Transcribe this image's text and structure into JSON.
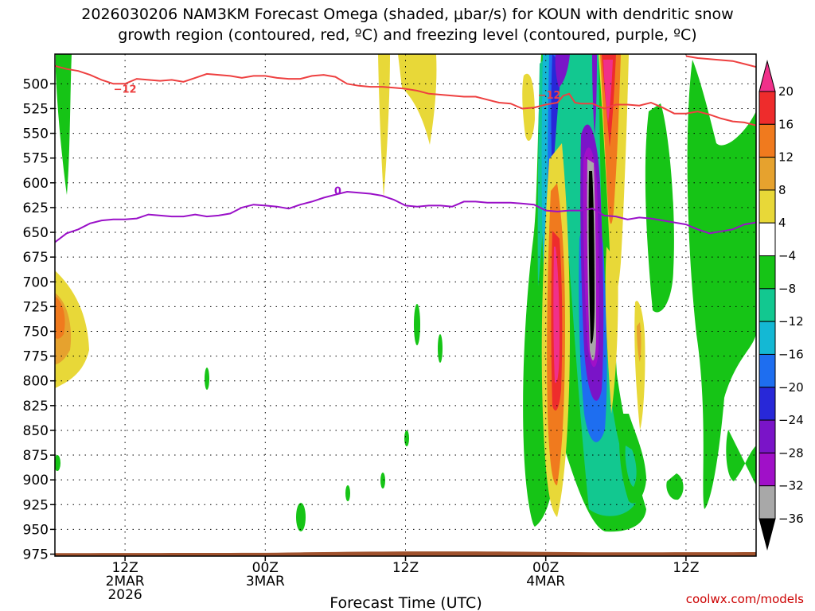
{
  "chart_data": {
    "type": "heatmap",
    "title_line1": "2026030206 NAM3KM Forecast Omega (shaded, μbar/s) for KOUN with dendritic snow",
    "title_line2": "growth region (contoured, red, ºC) and freezing level (contoured, purple, ºC)",
    "xlabel": "Forecast Time (UTC)",
    "credit": "coolwx.com/models",
    "y_axis": {
      "scale": "pressure",
      "ylim": [
        977,
        470
      ],
      "ticks": [
        500,
        525,
        550,
        575,
        600,
        625,
        650,
        675,
        700,
        725,
        750,
        775,
        800,
        825,
        850,
        875,
        900,
        925,
        950,
        975
      ]
    },
    "x_axis": {
      "ticks": [
        {
          "hour": 12,
          "label": "12Z",
          "sub1": "2MAR",
          "sub2": "2026"
        },
        {
          "hour": 24,
          "label": "00Z",
          "sub1": "3MAR",
          "sub2": ""
        },
        {
          "hour": 36,
          "label": "12Z",
          "sub1": "",
          "sub2": ""
        },
        {
          "hour": 48,
          "label": "00Z",
          "sub1": "4MAR",
          "sub2": ""
        },
        {
          "hour": 60,
          "label": "12Z",
          "sub1": "",
          "sub2": ""
        }
      ],
      "xlim": [
        6,
        66
      ]
    },
    "colorbar": {
      "labels": [
        "20",
        "16",
        "12",
        "8",
        "4",
        "−4",
        "−8",
        "−12",
        "−16",
        "−20",
        "−24",
        "−28",
        "−32",
        "−36"
      ],
      "colors": [
        "#f0308a",
        "#ee2c2c",
        "#f07a1e",
        "#e6a22e",
        "#e8d838",
        "#ffffff",
        "#16c416",
        "#12c890",
        "#14b8d4",
        "#1e6ef0",
        "#2828d8",
        "#7a14c8",
        "#a010c8",
        "#a8a8a8",
        "#000000"
      ]
    },
    "contour_minus12": {
      "label": "−12",
      "color": "#ee4040",
      "points": [
        [
          6,
          482
        ],
        [
          7,
          485
        ],
        [
          8,
          487
        ],
        [
          9,
          491
        ],
        [
          10,
          496
        ],
        [
          11,
          500
        ],
        [
          12,
          500
        ],
        [
          13,
          495
        ],
        [
          14,
          496
        ],
        [
          15,
          497
        ],
        [
          16,
          496
        ],
        [
          17,
          498
        ],
        [
          18,
          494
        ],
        [
          19,
          490
        ],
        [
          20,
          491
        ],
        [
          21,
          492
        ],
        [
          22,
          494
        ],
        [
          23,
          492
        ],
        [
          24,
          492
        ],
        [
          25,
          494
        ],
        [
          26,
          495
        ],
        [
          27,
          495
        ],
        [
          28,
          492
        ],
        [
          29,
          491
        ],
        [
          30,
          493
        ],
        [
          31,
          500
        ],
        [
          32,
          502
        ],
        [
          33,
          503
        ],
        [
          34,
          503
        ],
        [
          35,
          504
        ],
        [
          36,
          505
        ],
        [
          37,
          507
        ],
        [
          38,
          510
        ],
        [
          39,
          511
        ],
        [
          40,
          512
        ],
        [
          41,
          513
        ],
        [
          42,
          513
        ],
        [
          43,
          516
        ],
        [
          44,
          519
        ],
        [
          45,
          520
        ],
        [
          46,
          525
        ],
        [
          47,
          524
        ],
        [
          48,
          521
        ],
        [
          49,
          519
        ],
        [
          49.5,
          512
        ],
        [
          50,
          510
        ],
        [
          50.5,
          519
        ],
        [
          51,
          520
        ],
        [
          52,
          520
        ],
        [
          53,
          525
        ],
        [
          54,
          521
        ],
        [
          55,
          521
        ],
        [
          56,
          522
        ],
        [
          57,
          519
        ],
        [
          58,
          524
        ],
        [
          59,
          530
        ],
        [
          60,
          530
        ],
        [
          61,
          528
        ],
        [
          62,
          531
        ],
        [
          63,
          535
        ],
        [
          64,
          538
        ],
        [
          65,
          539
        ],
        [
          66,
          542
        ]
      ]
    },
    "contour_minus12_upper": {
      "points": [
        [
          60,
          472
        ],
        [
          61,
          474
        ],
        [
          62,
          475
        ],
        [
          63,
          476
        ],
        [
          64,
          477
        ],
        [
          65,
          480
        ],
        [
          66,
          483
        ]
      ]
    },
    "contour_zero": {
      "label": "0",
      "color": "#9a10c8",
      "points": [
        [
          6,
          660
        ],
        [
          7,
          651
        ],
        [
          8,
          647
        ],
        [
          9,
          641
        ],
        [
          10,
          638
        ],
        [
          11,
          637
        ],
        [
          12,
          637
        ],
        [
          13,
          636
        ],
        [
          14,
          632
        ],
        [
          15,
          633
        ],
        [
          16,
          634
        ],
        [
          17,
          634
        ],
        [
          18,
          632
        ],
        [
          19,
          634
        ],
        [
          20,
          633
        ],
        [
          21,
          631
        ],
        [
          22,
          625
        ],
        [
          23,
          622
        ],
        [
          24,
          623
        ],
        [
          25,
          624
        ],
        [
          26,
          626
        ],
        [
          27,
          622
        ],
        [
          28,
          619
        ],
        [
          29,
          615
        ],
        [
          30,
          612
        ],
        [
          31,
          609
        ],
        [
          32,
          610
        ],
        [
          33,
          611
        ],
        [
          34,
          613
        ],
        [
          35,
          617
        ],
        [
          36,
          623
        ],
        [
          37,
          624
        ],
        [
          38,
          623
        ],
        [
          39,
          623
        ],
        [
          40,
          624
        ],
        [
          41,
          619
        ],
        [
          42,
          619
        ],
        [
          43,
          620
        ],
        [
          44,
          620
        ],
        [
          45,
          620
        ],
        [
          46,
          621
        ],
        [
          47,
          622
        ],
        [
          48,
          628
        ],
        [
          49,
          629
        ],
        [
          50,
          628
        ],
        [
          51,
          628
        ],
        [
          52,
          626
        ],
        [
          53,
          633
        ],
        [
          54,
          634
        ],
        [
          55,
          637
        ],
        [
          56,
          635
        ],
        [
          57,
          636
        ],
        [
          58,
          638
        ],
        [
          59,
          640
        ],
        [
          60,
          642
        ],
        [
          61,
          647
        ],
        [
          62,
          651
        ],
        [
          63,
          649
        ],
        [
          64,
          647
        ],
        [
          65,
          642
        ],
        [
          66,
          640
        ]
      ]
    },
    "terrain": {
      "color": "#a0522d",
      "top_left_hpa": 974,
      "top_right_hpa": 973
    }
  }
}
